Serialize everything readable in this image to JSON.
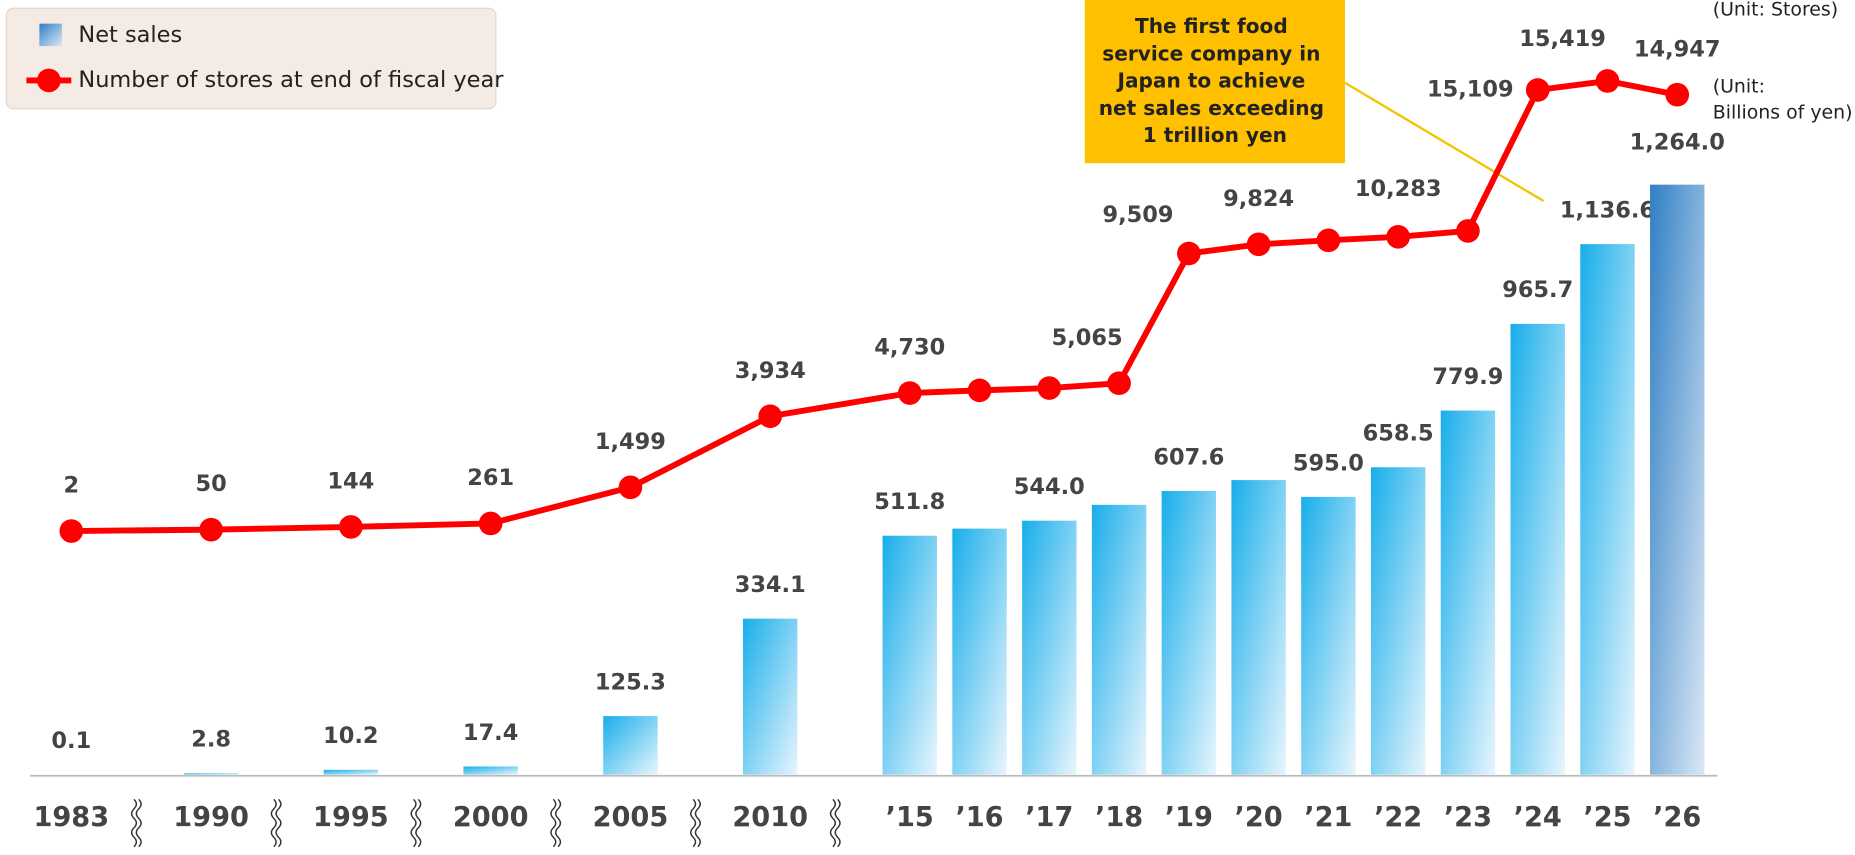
{
  "chart_data": {
    "type": "bar-line",
    "categories": [
      "1983",
      "1990",
      "1995",
      "2000",
      "2005",
      "2010",
      "’15",
      "’16",
      "’17",
      "’18",
      "’19",
      "’20",
      "’21",
      "’22",
      "’23",
      "’24",
      "’25",
      "’26"
    ],
    "series": [
      {
        "name": "Net sales",
        "type": "bar",
        "color": "#17aeea",
        "highlight_color": "#2f7fc4",
        "values": [
          0.1,
          2.8,
          10.2,
          17.4,
          125.3,
          334.1,
          511.8,
          527,
          544.0,
          578,
          607.6,
          631,
          595.0,
          658.5,
          779.9,
          965.7,
          1136.6,
          1264.0
        ],
        "value_labels": [
          "0.1",
          "2.8",
          "10.2",
          "17.4",
          "125.3",
          "334.1",
          "511.8",
          null,
          "544.0",
          null,
          "607.6",
          null,
          "595.0",
          "658.5",
          "779.9",
          "965.7",
          "1,136.6",
          "1,264.0"
        ]
      },
      {
        "name": "Number of stores at end of fiscal year",
        "type": "line",
        "axis": "y2",
        "color": "#ff0000",
        "values": [
          2,
          50,
          144,
          261,
          1499,
          3934,
          4730,
          4820,
          4900,
          5065,
          9509,
          9824,
          9960,
          10080,
          10283,
          15109,
          15419,
          14947
        ],
        "value_labels": [
          "2",
          "50",
          "144",
          "261",
          "1,499",
          "3,934",
          "4,730",
          null,
          null,
          "5,065",
          "9,509",
          "9,824",
          null,
          null,
          "10,283",
          "15,109",
          "15,419",
          "14,947"
        ]
      }
    ],
    "ylim": [
      0,
      1500
    ],
    "y2lim": [
      -8340,
      15640
    ],
    "unit_y": "(Unit: Billions of yen)",
    "unit_y2": "(Unit: Stores)",
    "annotation": "The first food service company in Japan to achieve net sales exceeding 1 trillion yen"
  }
}
